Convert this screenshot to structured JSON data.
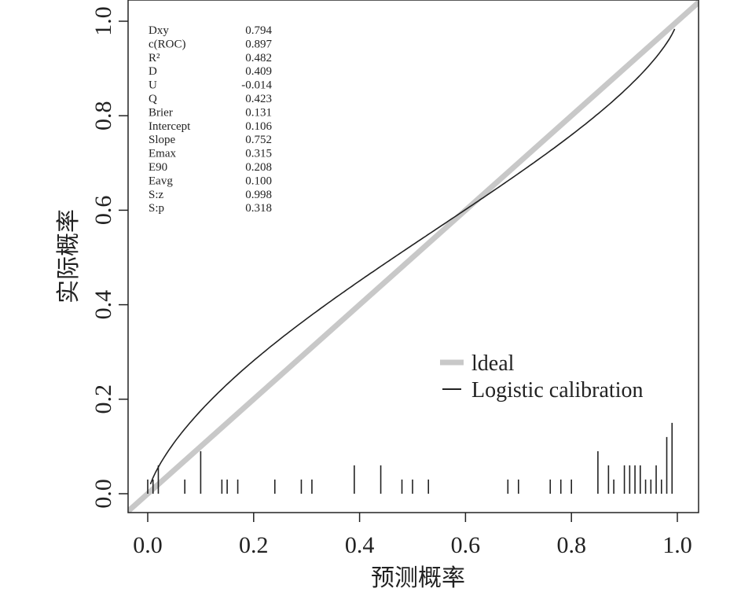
{
  "chart_data": {
    "type": "line",
    "title": "",
    "xlabel": "预测概率",
    "ylabel": "实际概率",
    "xlim": [
      -0.04,
      1.04
    ],
    "ylim": [
      -0.04,
      1.04
    ],
    "xticks": [
      "0.0",
      "0.2",
      "0.4",
      "0.6",
      "0.8",
      "1.0"
    ],
    "yticks": [
      "0.0",
      "0.2",
      "0.4",
      "0.6",
      "0.8",
      "1.0"
    ],
    "legend": {
      "placement": "bottom-right",
      "entries": [
        "ldeal",
        "Logistic calibration"
      ]
    },
    "series": [
      {
        "name": "ldeal",
        "color": "#c8c8c8",
        "x": [
          -0.04,
          1.04
        ],
        "y": [
          -0.04,
          1.04
        ]
      },
      {
        "name": "Logistic calibration",
        "color": "#222222",
        "model": "logistic",
        "intercept": 0.106,
        "slope": 0.752,
        "x_range": [
          0.005,
          0.995
        ]
      }
    ],
    "rug": {
      "x": [
        0.0,
        0.01,
        0.02,
        0.07,
        0.1,
        0.14,
        0.15,
        0.17,
        0.24,
        0.29,
        0.31,
        0.39,
        0.44,
        0.48,
        0.5,
        0.53,
        0.68,
        0.7,
        0.76,
        0.78,
        0.8,
        0.85,
        0.87,
        0.88,
        0.9,
        0.91,
        0.92,
        0.93,
        0.94,
        0.95,
        0.96,
        0.97,
        0.98,
        0.99
      ],
      "height": [
        0.03,
        0.03,
        0.06,
        0.03,
        0.09,
        0.03,
        0.03,
        0.03,
        0.03,
        0.03,
        0.03,
        0.06,
        0.06,
        0.03,
        0.03,
        0.03,
        0.03,
        0.03,
        0.03,
        0.03,
        0.03,
        0.09,
        0.06,
        0.03,
        0.06,
        0.06,
        0.06,
        0.06,
        0.03,
        0.03,
        0.06,
        0.03,
        0.12,
        0.15
      ]
    },
    "stats": [
      {
        "label": "Dxy",
        "value": "0.794"
      },
      {
        "label": "c(ROC)",
        "value": "0.897"
      },
      {
        "label": "R²",
        "value": "0.482"
      },
      {
        "label": "D",
        "value": "0.409"
      },
      {
        "label": "U",
        "value": "-0.014"
      },
      {
        "label": "Q",
        "value": "0.423"
      },
      {
        "label": "Brier",
        "value": "0.131"
      },
      {
        "label": "Intercept",
        "value": "0.106"
      },
      {
        "label": "Slope",
        "value": "0.752"
      },
      {
        "label": "Emax",
        "value": "0.315"
      },
      {
        "label": "E90",
        "value": "0.208"
      },
      {
        "label": "Eavg",
        "value": "0.100"
      },
      {
        "label": "S:z",
        "value": "0.998"
      },
      {
        "label": "S:p",
        "value": "0.318"
      }
    ]
  }
}
